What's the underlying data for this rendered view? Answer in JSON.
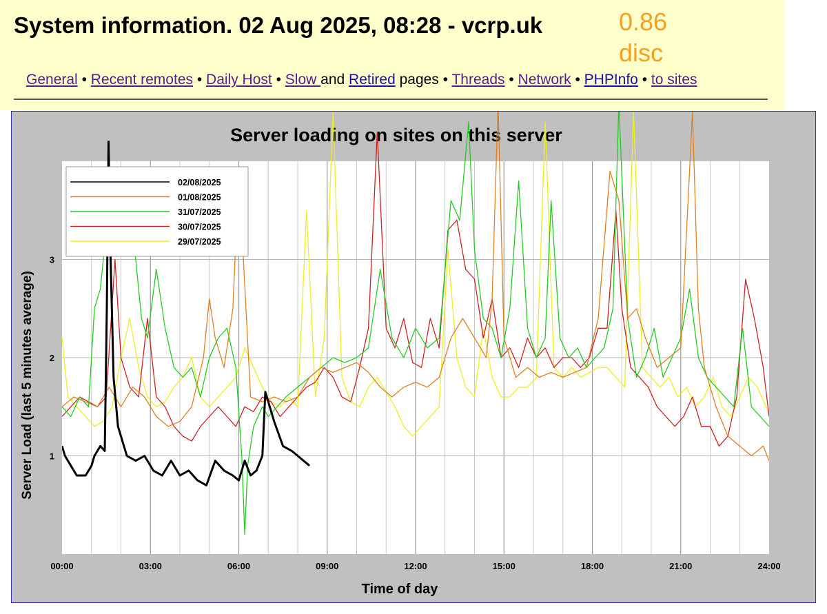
{
  "header": {
    "title": "System information. 02 Aug 2025, 08:28 - vcrp.uk",
    "load_value": "0.86",
    "load_status": "disc"
  },
  "nav": {
    "general": "General",
    "recent_remotes": "Recent remotes",
    "daily_host": "Daily Host",
    "slow": "Slow ",
    "and_text": "and",
    "retired": "Retired",
    "pages_text": "pages",
    "threads": "Threads",
    "network": "Network",
    "phpinfo": "PHPInfo",
    "to_sites": "to sites",
    "separator": "•"
  },
  "chart_data": {
    "type": "line",
    "title": "Server loading on sites on this server",
    "xlabel": "Time of day",
    "ylabel": "Server Load (last 5 minutes average)",
    "x_ticks": [
      "00:00",
      "03:00",
      "06:00",
      "09:00",
      "12:00",
      "15:00",
      "18:00",
      "21:00",
      "24:00"
    ],
    "y_ticks": [
      "1",
      "2",
      "3"
    ],
    "xlim": [
      0,
      24
    ],
    "ylim": [
      0,
      4
    ],
    "grid": true,
    "legend_position": "top-left",
    "series": [
      {
        "name": "02/08/2025",
        "color": "#000000",
        "x": [
          0,
          0.1,
          0.3,
          0.5,
          0.8,
          1.0,
          1.1,
          1.3,
          1.45,
          1.52,
          1.58,
          1.65,
          1.75,
          1.9,
          2.2,
          2.5,
          2.8,
          3.1,
          3.4,
          3.7,
          4.0,
          4.3,
          4.6,
          4.9,
          5.2,
          5.5,
          5.8,
          6.0,
          6.2,
          6.4,
          6.6,
          6.8,
          6.9,
          7.0,
          7.2,
          7.5,
          7.8,
          8.0,
          8.2,
          8.4
        ],
        "y": [
          1.1,
          1.0,
          0.9,
          0.8,
          0.8,
          0.9,
          1.0,
          1.1,
          1.05,
          2.5,
          4.2,
          3.0,
          1.8,
          1.3,
          1.0,
          0.95,
          1.0,
          0.85,
          0.8,
          0.95,
          0.8,
          0.85,
          0.75,
          0.7,
          0.95,
          0.85,
          0.8,
          0.75,
          0.95,
          0.8,
          0.85,
          1.0,
          1.65,
          1.55,
          1.35,
          1.1,
          1.05,
          1.0,
          0.95,
          0.9
        ]
      },
      {
        "name": "01/08/2025",
        "color": "#e08020",
        "x": [
          0,
          0.4,
          0.8,
          1.2,
          1.6,
          2.0,
          2.4,
          2.8,
          3.2,
          3.6,
          4.0,
          4.4,
          4.8,
          5.0,
          5.2,
          5.5,
          5.8,
          6.0,
          6.4,
          6.8,
          7.2,
          7.6,
          8.0,
          8.4,
          8.8,
          9.2,
          9.6,
          10.0,
          10.4,
          10.8,
          11.2,
          11.6,
          12.0,
          12.4,
          12.8,
          13.2,
          13.6,
          14.0,
          14.4,
          14.6,
          14.8,
          15.0,
          15.4,
          15.8,
          16.2,
          16.6,
          17.0,
          17.4,
          17.8,
          18.2,
          18.6,
          18.9,
          19.2,
          19.5,
          19.8,
          20.2,
          20.6,
          21.0,
          21.4,
          21.6,
          21.8,
          22.2,
          22.6,
          23.0,
          23.4,
          23.8,
          24.0
        ],
        "y": [
          1.5,
          1.6,
          1.55,
          1.5,
          1.7,
          1.5,
          1.7,
          1.6,
          1.4,
          1.3,
          1.35,
          1.5,
          2.0,
          2.6,
          2.2,
          1.9,
          2.5,
          3.9,
          1.6,
          1.55,
          1.6,
          1.55,
          1.6,
          1.8,
          1.9,
          1.85,
          1.9,
          1.95,
          1.85,
          1.7,
          1.6,
          1.7,
          1.75,
          1.7,
          1.8,
          2.2,
          2.4,
          2.2,
          2.0,
          2.6,
          4.6,
          2.2,
          1.8,
          1.9,
          1.8,
          1.85,
          1.8,
          1.85,
          1.9,
          2.4,
          3.9,
          3.6,
          2.4,
          2.5,
          2.2,
          1.9,
          2.0,
          2.1,
          4.5,
          2.5,
          1.9,
          1.5,
          1.2,
          1.1,
          1.0,
          1.1,
          0.95
        ]
      },
      {
        "name": "31/07/2025",
        "color": "#22cc22",
        "x": [
          0,
          0.3,
          0.6,
          0.9,
          1.1,
          1.3,
          1.5,
          1.7,
          1.9,
          2.1,
          2.3,
          2.5,
          2.7,
          2.9,
          3.2,
          3.5,
          3.8,
          4.1,
          4.4,
          4.7,
          5.0,
          5.3,
          5.6,
          5.9,
          6.1,
          6.2,
          6.3,
          6.5,
          6.8,
          7.0,
          7.3,
          7.6,
          8.0,
          8.4,
          8.8,
          9.2,
          9.6,
          10.0,
          10.4,
          10.8,
          11.2,
          11.6,
          12.0,
          12.4,
          12.8,
          13.0,
          13.2,
          13.5,
          13.8,
          14.0,
          14.3,
          14.6,
          14.9,
          15.2,
          15.5,
          15.8,
          16.1,
          16.4,
          16.6,
          16.9,
          17.2,
          17.5,
          17.8,
          18.1,
          18.4,
          18.7,
          18.9,
          19.2,
          19.5,
          19.8,
          20.1,
          20.4,
          20.7,
          21.0,
          21.3,
          21.6,
          21.9,
          22.2,
          22.5,
          22.8,
          23.1,
          23.4,
          23.7,
          24.0
        ],
        "y": [
          1.5,
          1.4,
          1.6,
          1.5,
          2.5,
          2.7,
          3.3,
          3.6,
          3.2,
          3.4,
          3.8,
          3.0,
          2.4,
          2.2,
          2.9,
          2.3,
          1.9,
          1.8,
          1.9,
          1.6,
          2.0,
          2.2,
          2.3,
          1.9,
          1.0,
          0.2,
          0.9,
          1.3,
          1.5,
          1.4,
          1.5,
          1.6,
          1.7,
          1.8,
          1.9,
          2.0,
          1.95,
          2.0,
          2.1,
          2.9,
          2.2,
          2.0,
          2.3,
          2.1,
          2.2,
          2.9,
          3.6,
          3.4,
          4.4,
          3.1,
          2.4,
          2.3,
          2.0,
          2.5,
          3.8,
          2.3,
          2.0,
          2.2,
          3.6,
          2.2,
          2.0,
          2.1,
          1.9,
          2.0,
          2.1,
          2.5,
          4.6,
          2.4,
          1.8,
          2.0,
          2.3,
          1.8,
          2.0,
          2.2,
          2.7,
          2.0,
          1.8,
          1.7,
          1.6,
          1.5,
          2.3,
          1.5,
          1.4,
          1.3
        ]
      },
      {
        "name": "30/07/2025",
        "color": "#cc2222",
        "x": [
          0,
          0.3,
          0.6,
          0.9,
          1.2,
          1.5,
          1.8,
          2.0,
          2.3,
          2.6,
          2.9,
          3.2,
          3.5,
          3.8,
          4.1,
          4.4,
          4.7,
          5.0,
          5.3,
          5.6,
          5.9,
          6.2,
          6.5,
          6.8,
          7.1,
          7.4,
          7.7,
          8.0,
          8.3,
          8.6,
          8.9,
          9.2,
          9.5,
          9.8,
          10.1,
          10.4,
          10.7,
          11.0,
          11.3,
          11.6,
          11.9,
          12.2,
          12.5,
          12.8,
          13.1,
          13.4,
          13.7,
          14.0,
          14.3,
          14.6,
          14.9,
          15.2,
          15.5,
          15.8,
          16.1,
          16.4,
          16.7,
          17.0,
          17.3,
          17.6,
          17.9,
          18.2,
          18.5,
          18.8,
          19.0,
          19.3,
          19.6,
          19.9,
          20.2,
          20.5,
          20.8,
          21.1,
          21.4,
          21.7,
          22.0,
          22.3,
          22.6,
          22.9,
          23.2,
          23.5,
          23.8,
          24.0
        ],
        "y": [
          1.4,
          1.5,
          1.6,
          1.55,
          1.5,
          1.6,
          3.0,
          2.0,
          1.7,
          1.6,
          2.4,
          1.6,
          1.5,
          1.3,
          1.2,
          1.15,
          1.3,
          1.4,
          1.5,
          1.4,
          1.3,
          1.5,
          1.45,
          1.6,
          1.55,
          1.4,
          1.5,
          1.6,
          1.7,
          1.75,
          1.9,
          1.8,
          1.6,
          1.55,
          1.9,
          2.3,
          4.3,
          2.3,
          2.1,
          2.4,
          1.95,
          1.9,
          2.4,
          2.1,
          3.3,
          3.4,
          2.9,
          2.8,
          2.2,
          2.6,
          2.0,
          2.1,
          1.9,
          2.2,
          2.0,
          2.1,
          1.9,
          2.0,
          2.0,
          1.9,
          2.0,
          2.3,
          2.3,
          3.5,
          2.5,
          1.9,
          1.8,
          1.7,
          1.5,
          1.4,
          1.3,
          1.4,
          1.6,
          1.3,
          1.3,
          1.1,
          1.2,
          1.6,
          2.8,
          2.4,
          1.9,
          1.4
        ]
      },
      {
        "name": "29/07/2025",
        "color": "#eeee22",
        "x": [
          0,
          0.2,
          0.5,
          0.8,
          1.1,
          1.4,
          1.7,
          2.0,
          2.3,
          2.6,
          2.9,
          3.2,
          3.5,
          3.8,
          4.1,
          4.4,
          4.7,
          5.0,
          5.3,
          5.6,
          5.9,
          6.2,
          6.5,
          6.8,
          7.1,
          7.4,
          7.7,
          8.0,
          8.3,
          8.6,
          8.9,
          9.2,
          9.5,
          9.8,
          10.1,
          10.4,
          10.7,
          11.0,
          11.3,
          11.6,
          11.9,
          12.2,
          12.5,
          12.8,
          13.1,
          13.4,
          13.7,
          14.0,
          14.3,
          14.6,
          14.9,
          15.2,
          15.5,
          15.8,
          16.1,
          16.4,
          16.7,
          17.0,
          17.3,
          17.6,
          17.9,
          18.2,
          18.5,
          18.8,
          19.1,
          19.4,
          19.7,
          20.0,
          20.3,
          20.6,
          20.9,
          21.2,
          21.5,
          21.8,
          22.1,
          22.4,
          22.7,
          23.0,
          23.3,
          23.6,
          23.9,
          24.0
        ],
        "y": [
          2.2,
          1.6,
          1.5,
          1.4,
          1.3,
          1.35,
          1.5,
          2.0,
          2.4,
          1.9,
          1.6,
          1.5,
          1.55,
          1.7,
          1.8,
          2.0,
          1.6,
          1.5,
          1.6,
          1.7,
          1.8,
          2.1,
          1.9,
          1.7,
          1.55,
          1.5,
          1.6,
          1.5,
          3.5,
          1.6,
          2.2,
          4.5,
          1.8,
          1.55,
          1.5,
          1.7,
          1.8,
          1.65,
          1.5,
          1.3,
          1.2,
          1.3,
          1.4,
          1.5,
          3.1,
          2.0,
          1.7,
          1.6,
          2.3,
          1.8,
          1.6,
          1.6,
          1.7,
          1.7,
          1.8,
          4.4,
          1.9,
          1.8,
          1.9,
          1.8,
          1.85,
          1.9,
          1.9,
          1.8,
          1.7,
          4.5,
          1.9,
          1.8,
          1.7,
          1.8,
          1.6,
          1.7,
          1.5,
          1.6,
          1.8,
          1.5,
          1.4,
          1.6,
          1.8,
          1.7,
          1.5,
          1.45
        ]
      }
    ]
  }
}
